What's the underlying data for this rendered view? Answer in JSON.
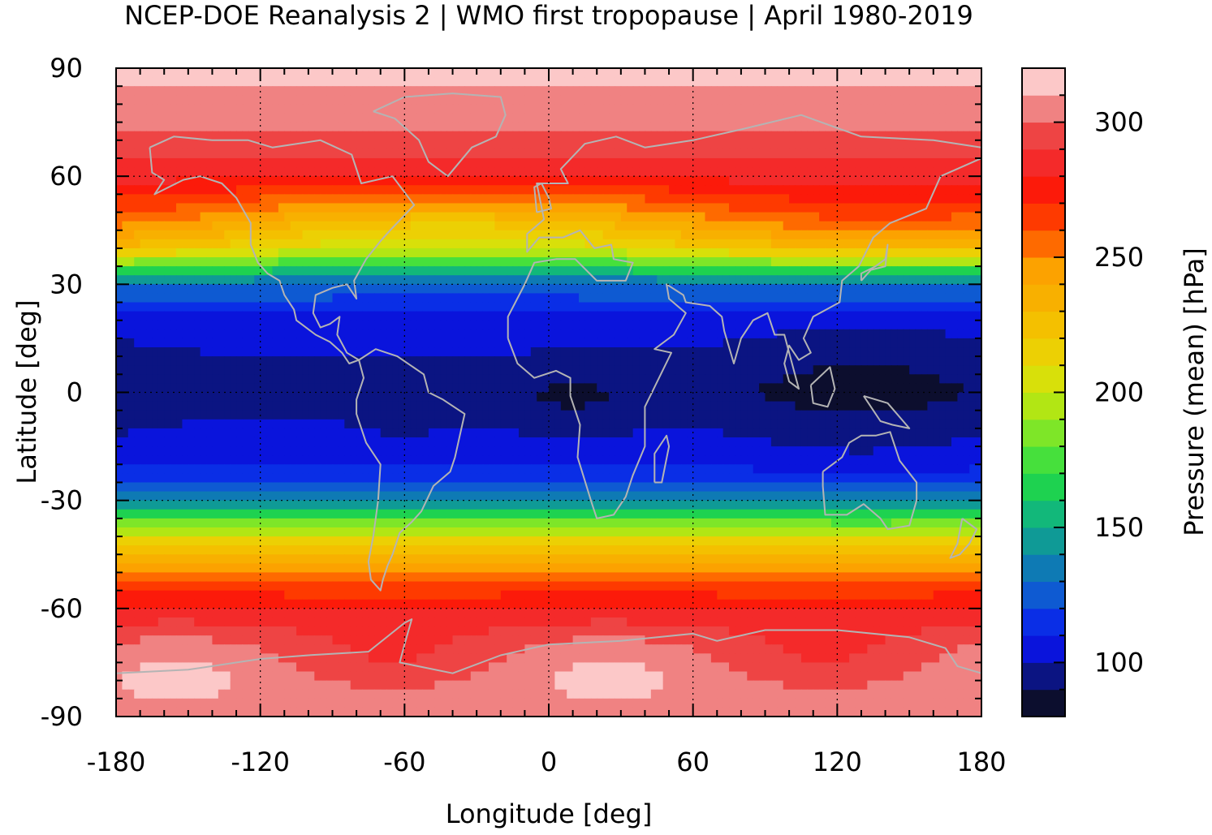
{
  "chart_data": {
    "type": "heatmap",
    "title": "NCEP-DOE Reanalysis 2 | WMO first tropopause | April 1980-2019",
    "xlabel": "Longitude [deg]",
    "ylabel": "Latitude [deg]",
    "colorbar_label": "Pressure (mean) [hPa]",
    "xlim": [
      -180,
      180
    ],
    "ylim": [
      -90,
      90
    ],
    "x_ticks": [
      -180,
      -120,
      -60,
      0,
      60,
      120,
      180
    ],
    "x_tick_labels": [
      "-180",
      "-120",
      "-60",
      "0",
      "60",
      "120",
      "180"
    ],
    "y_ticks": [
      90,
      60,
      30,
      0,
      -30,
      -60,
      -90
    ],
    "y_tick_labels": [
      "90",
      "60",
      "30",
      "0",
      "-30",
      "-60",
      "-90"
    ],
    "grid": true,
    "colorbar_ticks": [
      300,
      250,
      200,
      150,
      100
    ],
    "colorbar_tick_labels": [
      "300",
      "250",
      "200",
      "150",
      "100"
    ],
    "colorbar_range": [
      80,
      320
    ],
    "colorbar_bins": [
      {
        "from": 80,
        "to": 90,
        "color": "#0c0e2e"
      },
      {
        "from": 90,
        "to": 100,
        "color": "#0b1482"
      },
      {
        "from": 100,
        "to": 110,
        "color": "#0a14dc"
      },
      {
        "from": 110,
        "to": 120,
        "color": "#0a2ee6"
      },
      {
        "from": 120,
        "to": 130,
        "color": "#0e5ad2"
      },
      {
        "from": 130,
        "to": 140,
        "color": "#0e7ab4"
      },
      {
        "from": 140,
        "to": 150,
        "color": "#0f9a96"
      },
      {
        "from": 150,
        "to": 160,
        "color": "#12b87a"
      },
      {
        "from": 160,
        "to": 170,
        "color": "#1ed250"
      },
      {
        "from": 170,
        "to": 180,
        "color": "#46e03c"
      },
      {
        "from": 180,
        "to": 190,
        "color": "#7ee628"
      },
      {
        "from": 190,
        "to": 200,
        "color": "#b2e614"
      },
      {
        "from": 200,
        "to": 210,
        "color": "#d8e00a"
      },
      {
        "from": 210,
        "to": 220,
        "color": "#ecd004"
      },
      {
        "from": 220,
        "to": 230,
        "color": "#f4c000"
      },
      {
        "from": 230,
        "to": 240,
        "color": "#f8b000"
      },
      {
        "from": 240,
        "to": 250,
        "color": "#fca200"
      },
      {
        "from": 250,
        "to": 260,
        "color": "#fe6a00"
      },
      {
        "from": 260,
        "to": 270,
        "color": "#fe3a00"
      },
      {
        "from": 270,
        "to": 280,
        "color": "#fc1a0a"
      },
      {
        "from": 280,
        "to": 290,
        "color": "#f42a2a"
      },
      {
        "from": 290,
        "to": 300,
        "color": "#ee4444"
      },
      {
        "from": 300,
        "to": 310,
        "color": "#f08282"
      },
      {
        "from": 310,
        "to": 320,
        "color": "#fcc8c8"
      }
    ],
    "zonal_mean_profile": {
      "lat": [
        -90,
        -80,
        -70,
        -60,
        -50,
        -40,
        -30,
        -20,
        -10,
        0,
        10,
        20,
        30,
        40,
        50,
        60,
        70,
        80,
        90
      ],
      "pressure": [
        308,
        305,
        296,
        282,
        250,
        205,
        140,
        108,
        102,
        95,
        100,
        106,
        130,
        215,
        250,
        282,
        298,
        306,
        314
      ]
    },
    "coastlines": true,
    "coastline_color": "#b4b4b4"
  }
}
